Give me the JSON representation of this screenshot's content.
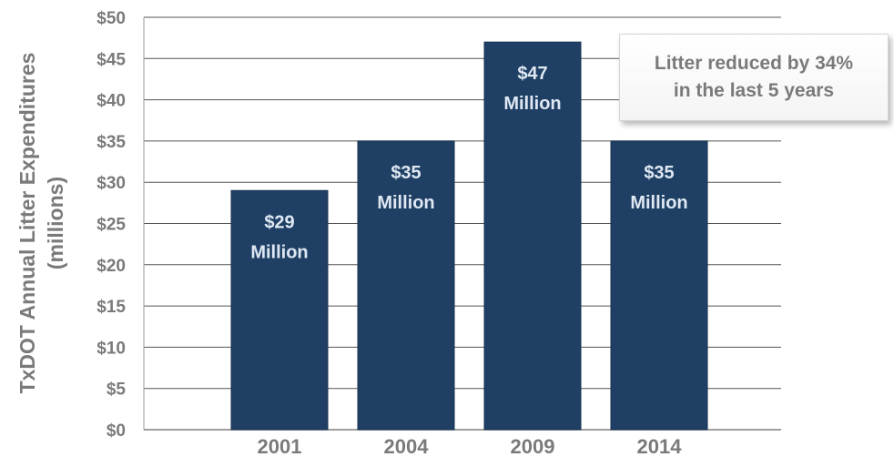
{
  "chart_data": {
    "type": "bar",
    "categories": [
      "2001",
      "2004",
      "2009",
      "2014"
    ],
    "values": [
      29,
      35,
      47,
      35
    ],
    "data_labels": [
      [
        "$29",
        "Million"
      ],
      [
        "$35",
        "Million"
      ],
      [
        "$47",
        "Million"
      ],
      [
        "$35",
        "Million"
      ]
    ],
    "ylabel_lines": [
      "TxDOT Annual Litter Expenditures",
      "(millions)"
    ],
    "ylim": [
      0,
      50
    ],
    "yticks": [
      0,
      5,
      10,
      15,
      20,
      25,
      30,
      35,
      40,
      45,
      50
    ],
    "ytick_labels": [
      "$0",
      "$5",
      "$10",
      "$15",
      "$20",
      "$25",
      "$30",
      "$35",
      "$40",
      "$45",
      "$50"
    ],
    "grid": true,
    "bar_color": "#1f4064"
  },
  "annotation": {
    "line1": "Litter reduced by 34%",
    "line2": "in the last 5 years"
  }
}
